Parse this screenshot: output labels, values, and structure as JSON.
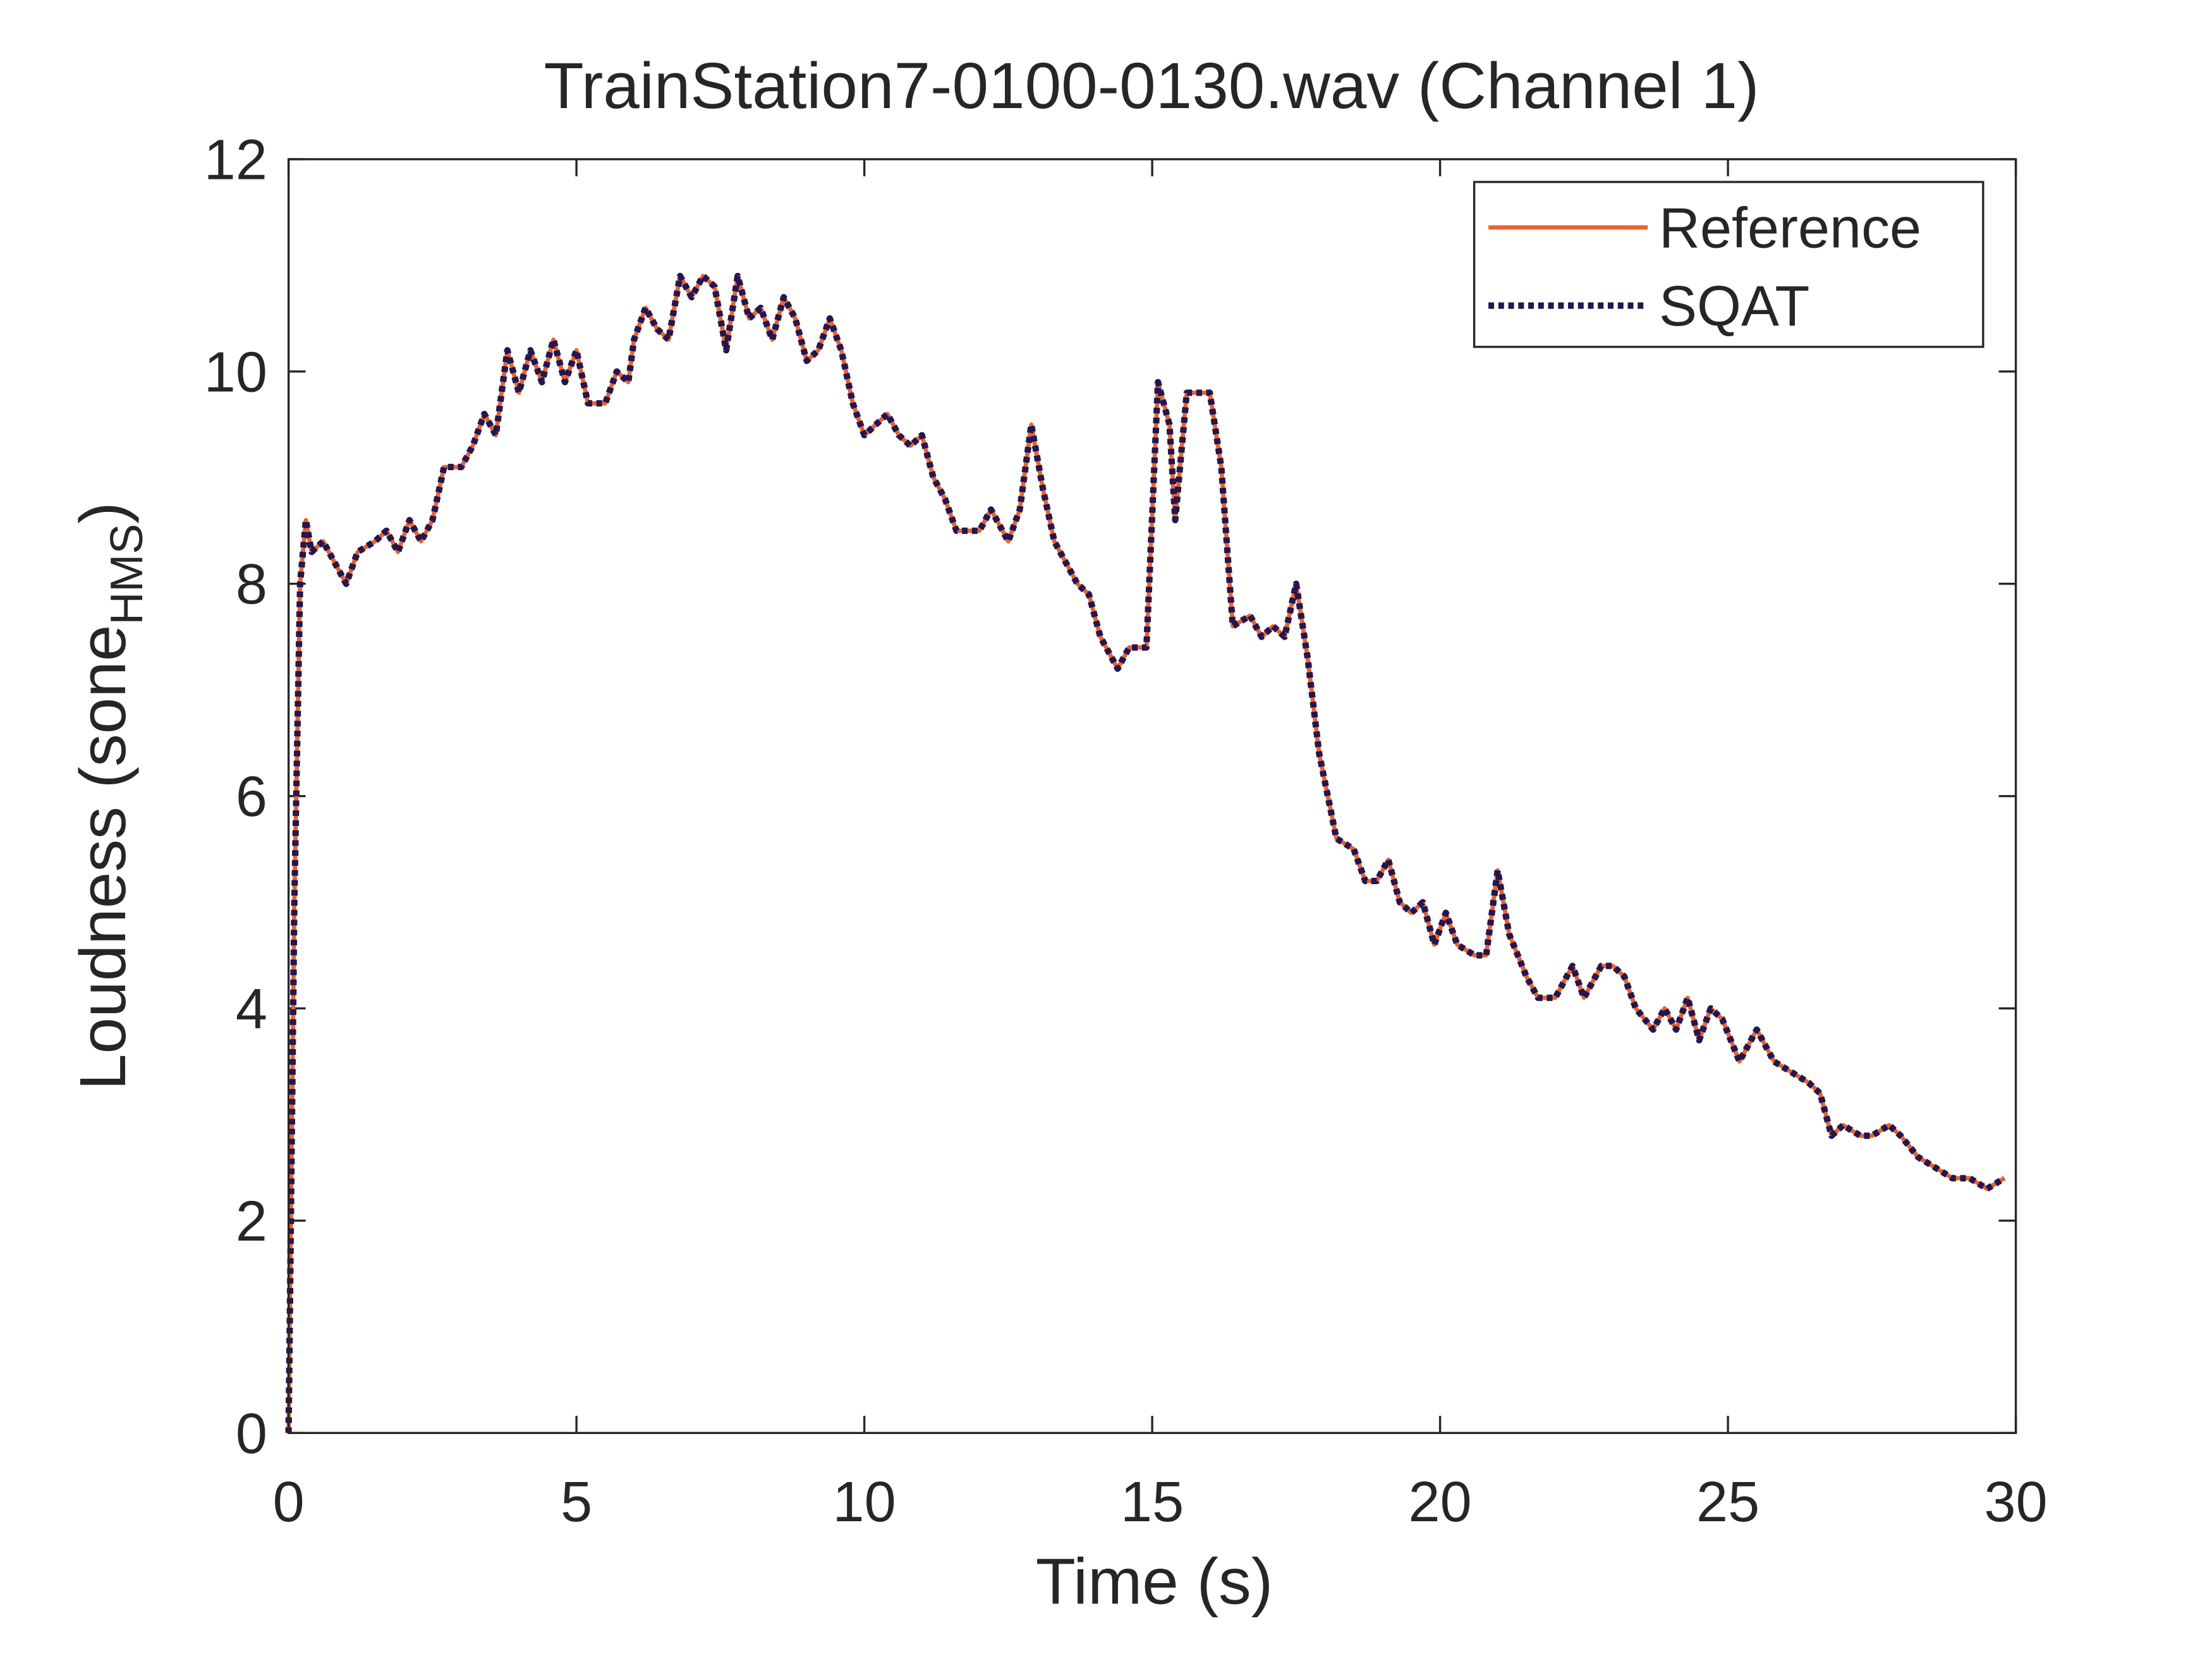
{
  "chart_data": {
    "type": "line",
    "title": "TrainStation7-0100-0130.wav (Channel 1)",
    "xlabel": "Time (s)",
    "ylabel_parts": [
      "Loudness (sone",
      "HMS",
      ")"
    ],
    "xlim": [
      0,
      30
    ],
    "xticks": [
      0,
      5,
      10,
      15,
      20,
      25,
      30
    ],
    "ylim": [
      0,
      12
    ],
    "yticks": [
      0,
      2,
      4,
      6,
      8,
      10,
      12
    ],
    "grid": false,
    "legend": "northeast",
    "x": [
      0,
      0.1,
      0.2,
      0.3,
      0.4,
      0.6,
      0.8,
      1.0,
      1.2,
      1.5,
      1.7,
      1.9,
      2.1,
      2.3,
      2.5,
      2.7,
      3.0,
      3.2,
      3.4,
      3.6,
      3.8,
      4.0,
      4.2,
      4.4,
      4.6,
      4.8,
      5.0,
      5.2,
      5.5,
      5.7,
      5.9,
      6.0,
      6.2,
      6.4,
      6.6,
      6.8,
      7.0,
      7.2,
      7.4,
      7.6,
      7.8,
      8.0,
      8.2,
      8.4,
      8.6,
      8.8,
      9.0,
      9.2,
      9.4,
      9.6,
      9.8,
      10.0,
      10.2,
      10.4,
      10.6,
      10.8,
      11.0,
      11.2,
      11.4,
      11.6,
      11.8,
      12.0,
      12.2,
      12.5,
      12.7,
      12.9,
      13.1,
      13.3,
      13.5,
      13.7,
      13.9,
      14.1,
      14.4,
      14.6,
      14.9,
      15.1,
      15.3,
      15.4,
      15.6,
      15.8,
      16.0,
      16.2,
      16.4,
      16.7,
      16.9,
      17.1,
      17.3,
      17.5,
      17.7,
      17.9,
      18.2,
      18.5,
      18.7,
      18.9,
      19.1,
      19.3,
      19.5,
      19.7,
      19.9,
      20.1,
      20.3,
      20.6,
      20.8,
      21.0,
      21.2,
      21.5,
      21.7,
      22.0,
      22.3,
      22.5,
      22.8,
      23.0,
      23.2,
      23.4,
      23.7,
      23.9,
      24.1,
      24.3,
      24.5,
      24.7,
      24.9,
      25.2,
      25.5,
      25.8,
      26.1,
      26.4,
      26.6,
      26.8,
      27.0,
      27.3,
      27.5,
      27.8,
      28.0,
      28.3,
      28.6,
      28.9,
      29.2,
      29.5,
      29.8
    ],
    "series": [
      {
        "name": "Reference",
        "color": "#e8642c",
        "linestyle": "solid",
        "values": [
          0,
          5,
          8.0,
          8.6,
          8.3,
          8.4,
          8.2,
          8.0,
          8.3,
          8.4,
          8.5,
          8.3,
          8.6,
          8.4,
          8.6,
          9.1,
          9.1,
          9.3,
          9.6,
          9.4,
          10.2,
          9.8,
          10.2,
          9.9,
          10.3,
          9.9,
          10.2,
          9.7,
          9.7,
          10.0,
          9.9,
          10.3,
          10.6,
          10.4,
          10.3,
          10.9,
          10.7,
          10.9,
          10.8,
          10.2,
          10.9,
          10.5,
          10.6,
          10.3,
          10.7,
          10.5,
          10.1,
          10.2,
          10.5,
          10.2,
          9.7,
          9.4,
          9.5,
          9.6,
          9.4,
          9.3,
          9.4,
          9.0,
          8.8,
          8.5,
          8.5,
          8.5,
          8.7,
          8.4,
          8.7,
          9.5,
          8.9,
          8.4,
          8.2,
          8.0,
          7.9,
          7.5,
          7.2,
          7.4,
          7.4,
          9.9,
          9.5,
          8.6,
          9.8,
          9.8,
          9.8,
          9.1,
          7.6,
          7.7,
          7.5,
          7.6,
          7.5,
          8.0,
          7.3,
          6.4,
          5.6,
          5.5,
          5.2,
          5.2,
          5.4,
          5.0,
          4.9,
          5.0,
          4.6,
          4.9,
          4.6,
          4.5,
          4.5,
          5.3,
          4.7,
          4.3,
          4.1,
          4.1,
          4.4,
          4.1,
          4.4,
          4.4,
          4.3,
          4.0,
          3.8,
          4.0,
          3.8,
          4.1,
          3.7,
          4.0,
          3.9,
          3.5,
          3.8,
          3.5,
          3.4,
          3.3,
          3.2,
          2.8,
          2.9,
          2.8,
          2.8,
          2.9,
          2.8,
          2.6,
          2.5,
          2.4,
          2.4,
          2.3,
          2.4
        ]
      },
      {
        "name": "SQAT",
        "color": "#241650",
        "linestyle": "dotted",
        "values": [
          0,
          5,
          8.0,
          8.6,
          8.3,
          8.4,
          8.2,
          8.0,
          8.3,
          8.4,
          8.5,
          8.3,
          8.6,
          8.4,
          8.6,
          9.1,
          9.1,
          9.3,
          9.6,
          9.4,
          10.2,
          9.8,
          10.2,
          9.9,
          10.3,
          9.9,
          10.2,
          9.7,
          9.7,
          10.0,
          9.9,
          10.3,
          10.6,
          10.4,
          10.3,
          10.9,
          10.7,
          10.9,
          10.8,
          10.2,
          10.9,
          10.5,
          10.6,
          10.3,
          10.7,
          10.5,
          10.1,
          10.2,
          10.5,
          10.2,
          9.7,
          9.4,
          9.5,
          9.6,
          9.4,
          9.3,
          9.4,
          9.0,
          8.8,
          8.5,
          8.5,
          8.5,
          8.7,
          8.4,
          8.7,
          9.5,
          8.9,
          8.4,
          8.2,
          8.0,
          7.9,
          7.5,
          7.2,
          7.4,
          7.4,
          9.9,
          9.5,
          8.6,
          9.8,
          9.8,
          9.8,
          9.1,
          7.6,
          7.7,
          7.5,
          7.6,
          7.5,
          8.0,
          7.3,
          6.4,
          5.6,
          5.5,
          5.2,
          5.2,
          5.4,
          5.0,
          4.9,
          5.0,
          4.6,
          4.9,
          4.6,
          4.5,
          4.5,
          5.3,
          4.7,
          4.3,
          4.1,
          4.1,
          4.4,
          4.1,
          4.4,
          4.4,
          4.3,
          4.0,
          3.8,
          4.0,
          3.8,
          4.1,
          3.7,
          4.0,
          3.9,
          3.5,
          3.8,
          3.5,
          3.4,
          3.3,
          3.2,
          2.8,
          2.9,
          2.8,
          2.8,
          2.9,
          2.8,
          2.6,
          2.5,
          2.4,
          2.4,
          2.3,
          2.4
        ]
      }
    ]
  }
}
